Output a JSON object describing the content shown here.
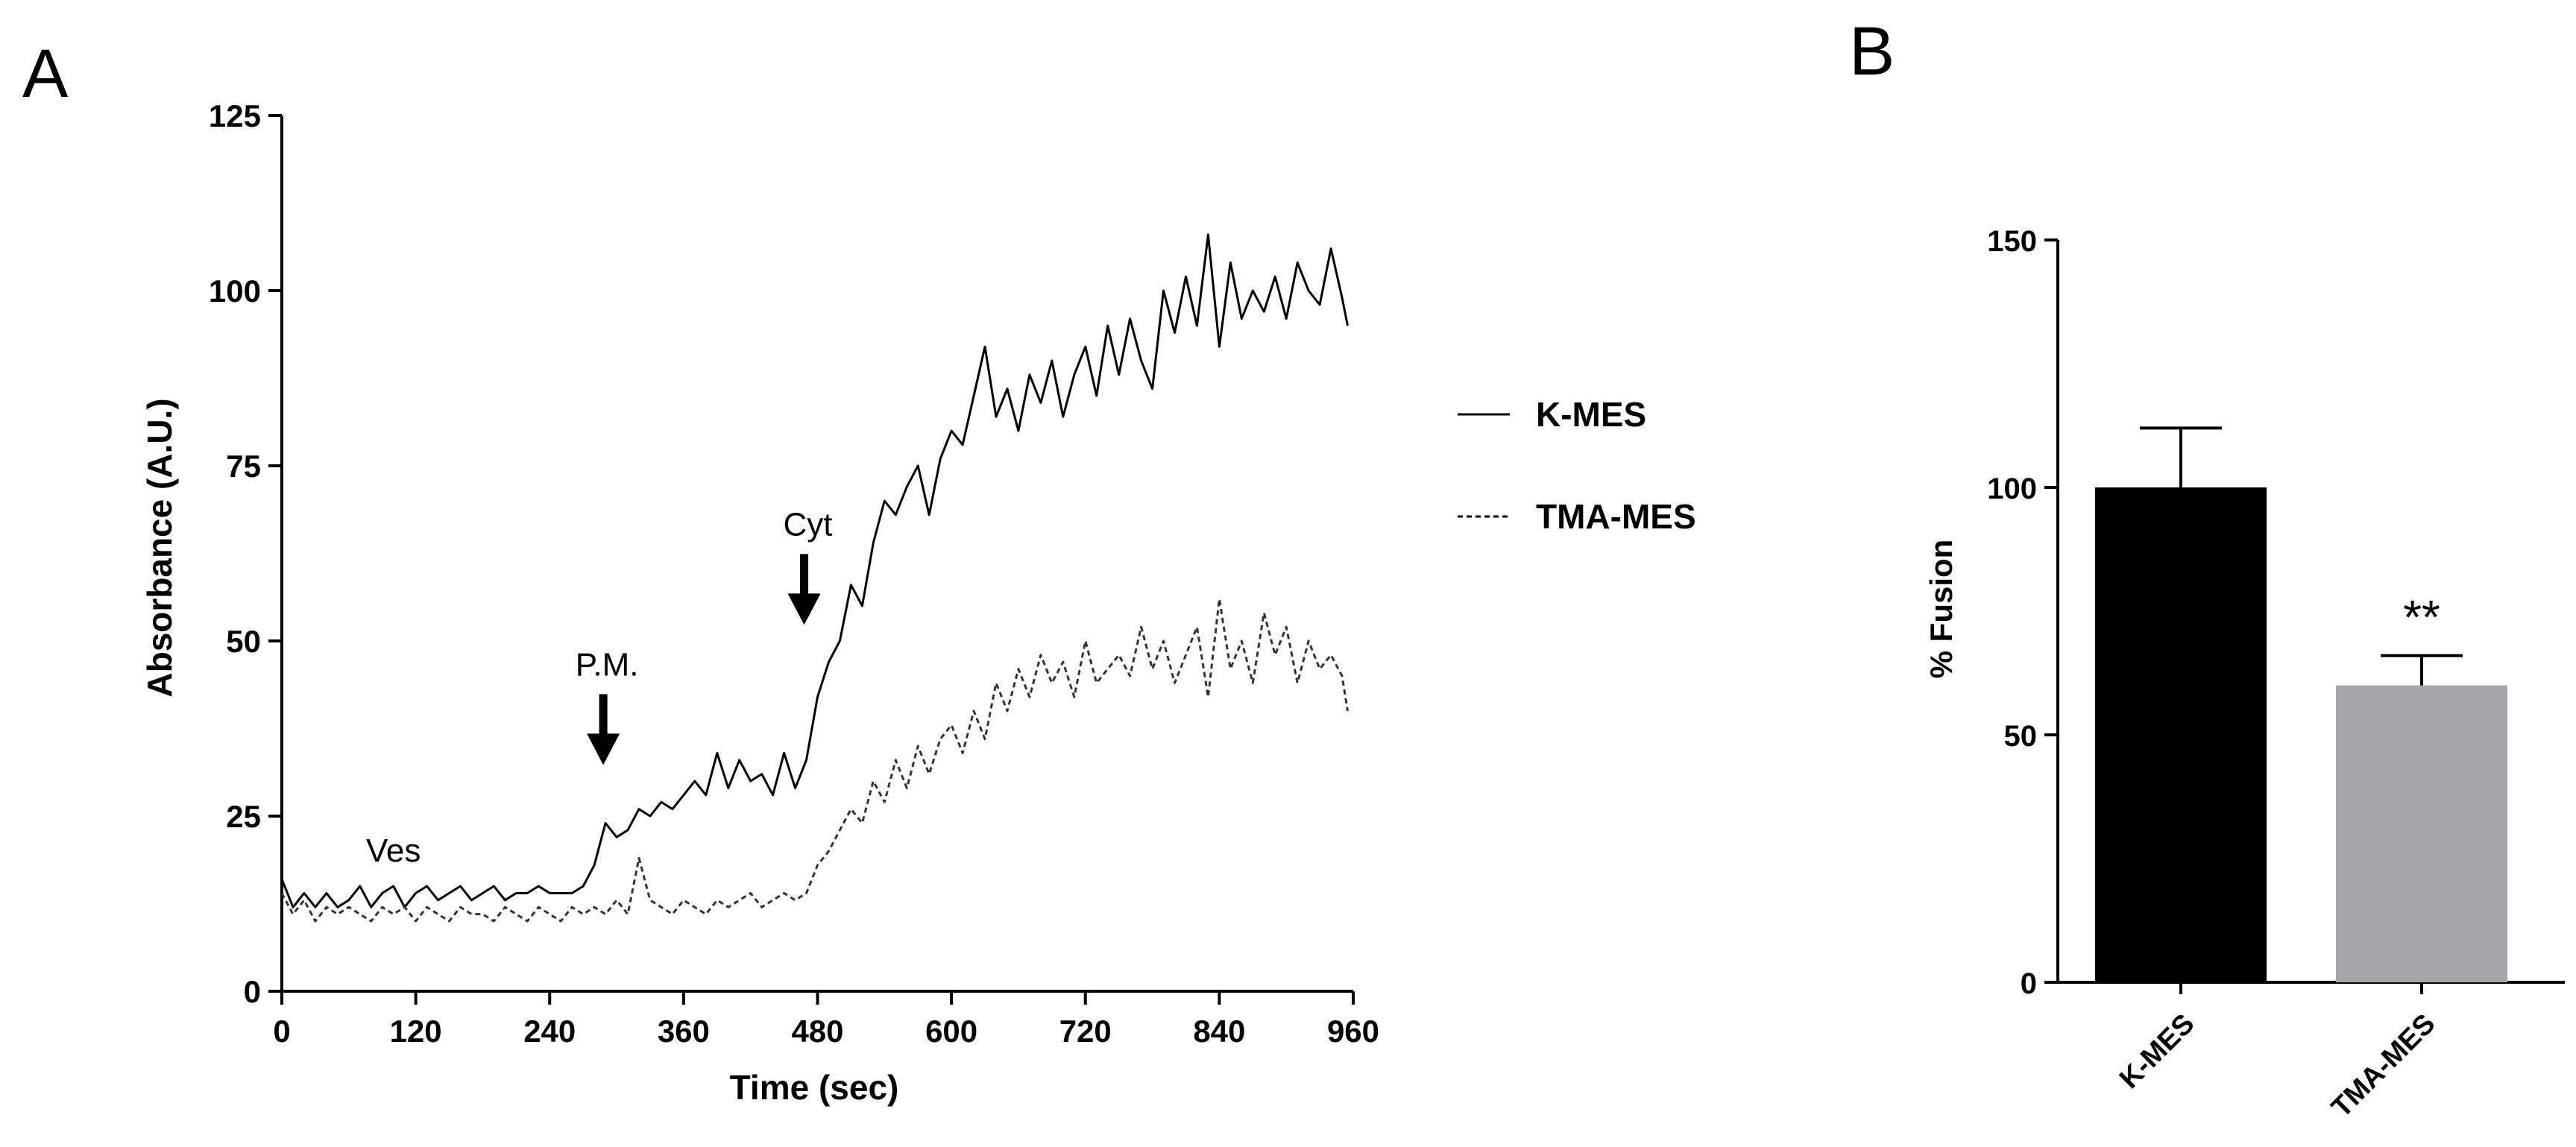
{
  "panels": {
    "a_label": "A",
    "b_label": "B"
  },
  "chart_data": [
    {
      "type": "line",
      "panel": "A",
      "xlabel": "Time (sec)",
      "ylabel": "Absorbance (A.U.)",
      "xlim": [
        0,
        960
      ],
      "ylim": [
        0,
        125
      ],
      "xticks": [
        "0",
        "120",
        "240",
        "360",
        "480",
        "600",
        "720",
        "840",
        "960"
      ],
      "yticks": [
        "0",
        "25",
        "50",
        "75",
        "100",
        "125"
      ],
      "legend": {
        "position": "right",
        "entries": [
          "K-MES",
          "TMA-MES"
        ]
      },
      "annotations": [
        {
          "label": "Ves",
          "x": 100,
          "y": 18.5,
          "arrow": false
        },
        {
          "label": "P.M.",
          "x": 288,
          "y": 44,
          "arrow": true
        },
        {
          "label": "Cyt",
          "x": 468,
          "y": 64,
          "arrow": true
        }
      ],
      "series": [
        {
          "name": "K-MES",
          "style": "solid",
          "x": [
            0,
            10,
            20,
            30,
            40,
            50,
            60,
            70,
            80,
            90,
            100,
            110,
            120,
            130,
            140,
            150,
            160,
            170,
            180,
            190,
            200,
            210,
            220,
            230,
            240,
            250,
            260,
            270,
            280,
            290,
            300,
            310,
            320,
            330,
            340,
            350,
            360,
            370,
            380,
            390,
            400,
            410,
            420,
            430,
            440,
            450,
            460,
            470,
            480,
            490,
            500,
            510,
            520,
            530,
            540,
            550,
            560,
            570,
            580,
            590,
            600,
            610,
            620,
            630,
            640,
            650,
            660,
            670,
            680,
            690,
            700,
            710,
            720,
            730,
            740,
            750,
            760,
            770,
            780,
            790,
            800,
            810,
            820,
            830,
            840,
            850,
            860,
            870,
            880,
            890,
            900,
            910,
            920,
            930,
            940,
            950,
            955
          ],
          "values": [
            16,
            12,
            14,
            12,
            14,
            12,
            13,
            15,
            12,
            14,
            15,
            12,
            14,
            15,
            13,
            14,
            15,
            13,
            14,
            15,
            13,
            14,
            14,
            15,
            14,
            14,
            14,
            15,
            18,
            24,
            22,
            23,
            26,
            25,
            27,
            26,
            28,
            30,
            28,
            34,
            29,
            33,
            30,
            31,
            28,
            34,
            29,
            33,
            42,
            47,
            50,
            58,
            55,
            64,
            70,
            68,
            72,
            75,
            68,
            76,
            80,
            78,
            85,
            92,
            82,
            86,
            80,
            88,
            84,
            90,
            82,
            88,
            92,
            85,
            95,
            88,
            96,
            90,
            86,
            100,
            94,
            102,
            95,
            108,
            92,
            104,
            96,
            100,
            97,
            102,
            96,
            104,
            100,
            98,
            106,
            99,
            95
          ]
        },
        {
          "name": "TMA-MES",
          "style": "dashed",
          "x": [
            0,
            10,
            20,
            30,
            40,
            50,
            60,
            70,
            80,
            90,
            100,
            110,
            120,
            130,
            140,
            150,
            160,
            170,
            180,
            190,
            200,
            210,
            220,
            230,
            240,
            250,
            260,
            270,
            280,
            290,
            300,
            310,
            320,
            330,
            340,
            350,
            360,
            370,
            380,
            390,
            400,
            410,
            420,
            430,
            440,
            450,
            460,
            470,
            480,
            490,
            500,
            510,
            520,
            530,
            540,
            550,
            560,
            570,
            580,
            590,
            600,
            610,
            620,
            630,
            640,
            650,
            660,
            670,
            680,
            690,
            700,
            710,
            720,
            730,
            740,
            750,
            760,
            770,
            780,
            790,
            800,
            810,
            820,
            830,
            840,
            850,
            860,
            870,
            880,
            890,
            900,
            910,
            920,
            930,
            940,
            950,
            955
          ],
          "values": [
            14,
            11,
            13,
            10,
            12,
            11,
            12,
            11,
            10,
            12,
            11,
            12,
            10,
            12,
            11,
            10,
            12,
            11,
            11,
            10,
            12,
            11,
            10,
            12,
            11,
            10,
            12,
            11,
            12,
            11,
            13,
            11,
            19,
            13,
            12,
            11,
            13,
            12,
            11,
            13,
            12,
            13,
            14,
            12,
            13,
            14,
            13,
            14,
            18,
            20,
            23,
            26,
            24,
            30,
            27,
            33,
            29,
            35,
            31,
            36,
            38,
            34,
            40,
            36,
            44,
            40,
            46,
            42,
            48,
            44,
            47,
            42,
            50,
            44,
            46,
            48,
            45,
            52,
            46,
            50,
            44,
            48,
            52,
            42,
            56,
            46,
            50,
            44,
            54,
            48,
            52,
            44,
            50,
            46,
            48,
            45,
            40
          ]
        }
      ]
    },
    {
      "type": "bar",
      "panel": "B",
      "categories": [
        "K-MES",
        "TMA-MES"
      ],
      "values": [
        100,
        60
      ],
      "errors": [
        12,
        6
      ],
      "colors": [
        "#000000",
        "#a6a6a8"
      ],
      "ylabel": "% Fusion",
      "ylim": [
        0,
        150
      ],
      "yticks": [
        "0",
        "50",
        "100",
        "150"
      ],
      "significance": [
        {
          "category": "TMA-MES",
          "label": "**"
        }
      ]
    }
  ]
}
